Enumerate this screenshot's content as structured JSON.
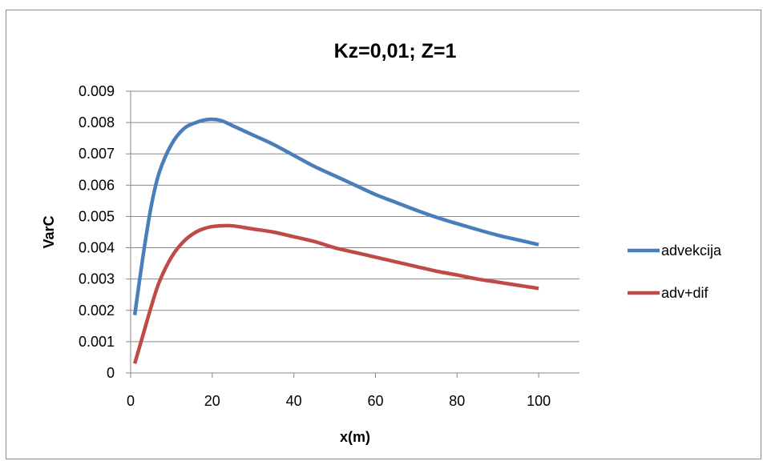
{
  "chart_data": {
    "type": "line",
    "title": "Kz=0,01; Z=1",
    "xlabel": "x(m)",
    "ylabel": "VarC",
    "xlim": [
      0,
      110
    ],
    "ylim": [
      0,
      0.009
    ],
    "x_ticks": [
      0,
      20,
      40,
      60,
      80,
      100
    ],
    "x_tick_labels": [
      "0",
      "20",
      "40",
      "60",
      "80",
      "100"
    ],
    "y_ticks": [
      0,
      0.001,
      0.002,
      0.003,
      0.004,
      0.005,
      0.006,
      0.007,
      0.008,
      0.009
    ],
    "y_tick_labels": [
      "0",
      "0.001",
      "0.002",
      "0.003",
      "0.004",
      "0.005",
      "0.006",
      "0.007",
      "0.008",
      "0.009"
    ],
    "grid": "horizontal",
    "legend_position": "right",
    "series": [
      {
        "name": "advekcija",
        "color": "#4a7ebb",
        "x": [
          1,
          3,
          5,
          7,
          10,
          13,
          16,
          19,
          22,
          25,
          30,
          35,
          40,
          45,
          50,
          55,
          60,
          65,
          70,
          75,
          80,
          85,
          90,
          95,
          100
        ],
        "y": [
          0.00185,
          0.0037,
          0.0053,
          0.0064,
          0.0073,
          0.0078,
          0.008,
          0.0081,
          0.00807,
          0.0079,
          0.0076,
          0.0073,
          0.00695,
          0.0066,
          0.0063,
          0.006,
          0.0057,
          0.00545,
          0.0052,
          0.00497,
          0.00477,
          0.00458,
          0.0044,
          0.00425,
          0.0041
        ]
      },
      {
        "name": "adv+dif",
        "color": "#be4b48",
        "x": [
          1,
          3,
          5,
          7,
          10,
          13,
          16,
          19,
          22,
          25,
          30,
          35,
          40,
          45,
          50,
          55,
          60,
          65,
          70,
          75,
          80,
          85,
          90,
          95,
          100
        ],
        "y": [
          0.0003,
          0.0012,
          0.0021,
          0.0029,
          0.0037,
          0.0042,
          0.0045,
          0.00465,
          0.0047,
          0.0047,
          0.0046,
          0.0045,
          0.00435,
          0.0042,
          0.004,
          0.00385,
          0.0037,
          0.00355,
          0.0034,
          0.00325,
          0.00313,
          0.003,
          0.0029,
          0.0028,
          0.0027
        ]
      }
    ]
  }
}
